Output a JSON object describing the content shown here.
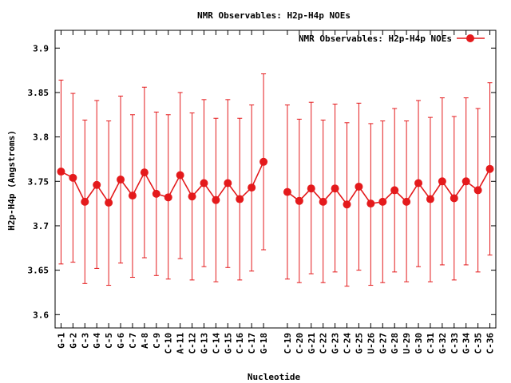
{
  "chart_data": {
    "type": "line",
    "title": "NMR Observables: H2p-H4p NOEs",
    "xlabel": "Nucleotide",
    "ylabel": "H2p-H4p (Angstroms)",
    "ylim": [
      3.585,
      3.92
    ],
    "yticks": [
      "3.6",
      "3.65",
      "3.7",
      "3.75",
      "3.8",
      "3.85",
      "3.9"
    ],
    "legend": {
      "position": "top-right",
      "label": "NMR Observables: H2p-H4p NOEs"
    },
    "color": "#e41a1c",
    "categories": [
      "G-1",
      "G-2",
      "C-3",
      "G-4",
      "C-5",
      "G-6",
      "C-7",
      "A-8",
      "C-9",
      "C-10",
      "A-11",
      "C-12",
      "G-13",
      "C-14",
      "G-15",
      "C-16",
      "C-17",
      "G-18",
      "C-19",
      "C-20",
      "G-21",
      "C-22",
      "G-23",
      "C-24",
      "G-25",
      "U-26",
      "G-27",
      "G-28",
      "U-29",
      "G-30",
      "C-31",
      "G-32",
      "C-33",
      "G-34",
      "C-35",
      "C-36"
    ],
    "positions": [
      1,
      2,
      3,
      4,
      5,
      6,
      7,
      8,
      9,
      10,
      11,
      12,
      13,
      14,
      15,
      16,
      17,
      18,
      20,
      21,
      22,
      23,
      24,
      25,
      26,
      27,
      28,
      29,
      30,
      31,
      32,
      33,
      34,
      35,
      36,
      37
    ],
    "segments": [
      [
        0,
        17
      ],
      [
        18,
        35
      ]
    ],
    "values": [
      3.761,
      3.754,
      3.727,
      3.746,
      3.726,
      3.752,
      3.734,
      3.76,
      3.736,
      3.732,
      3.757,
      3.733,
      3.748,
      3.729,
      3.748,
      3.73,
      3.743,
      3.772,
      3.738,
      3.728,
      3.742,
      3.727,
      3.742,
      3.724,
      3.744,
      3.725,
      3.727,
      3.74,
      3.727,
      3.748,
      3.73,
      3.75,
      3.731,
      3.75,
      3.74,
      3.764
    ],
    "err_low": [
      3.657,
      3.659,
      3.635,
      3.652,
      3.633,
      3.658,
      3.642,
      3.664,
      3.644,
      3.64,
      3.663,
      3.639,
      3.654,
      3.637,
      3.653,
      3.639,
      3.649,
      3.673,
      3.64,
      3.636,
      3.646,
      3.636,
      3.648,
      3.632,
      3.65,
      3.633,
      3.636,
      3.648,
      3.637,
      3.654,
      3.637,
      3.656,
      3.639,
      3.656,
      3.648,
      3.667
    ],
    "err_high": [
      3.864,
      3.849,
      3.819,
      3.841,
      3.818,
      3.846,
      3.825,
      3.856,
      3.828,
      3.825,
      3.85,
      3.827,
      3.842,
      3.821,
      3.842,
      3.821,
      3.836,
      3.871,
      3.836,
      3.82,
      3.839,
      3.819,
      3.837,
      3.816,
      3.838,
      3.815,
      3.818,
      3.832,
      3.818,
      3.841,
      3.822,
      3.844,
      3.823,
      3.844,
      3.832,
      3.861
    ]
  }
}
